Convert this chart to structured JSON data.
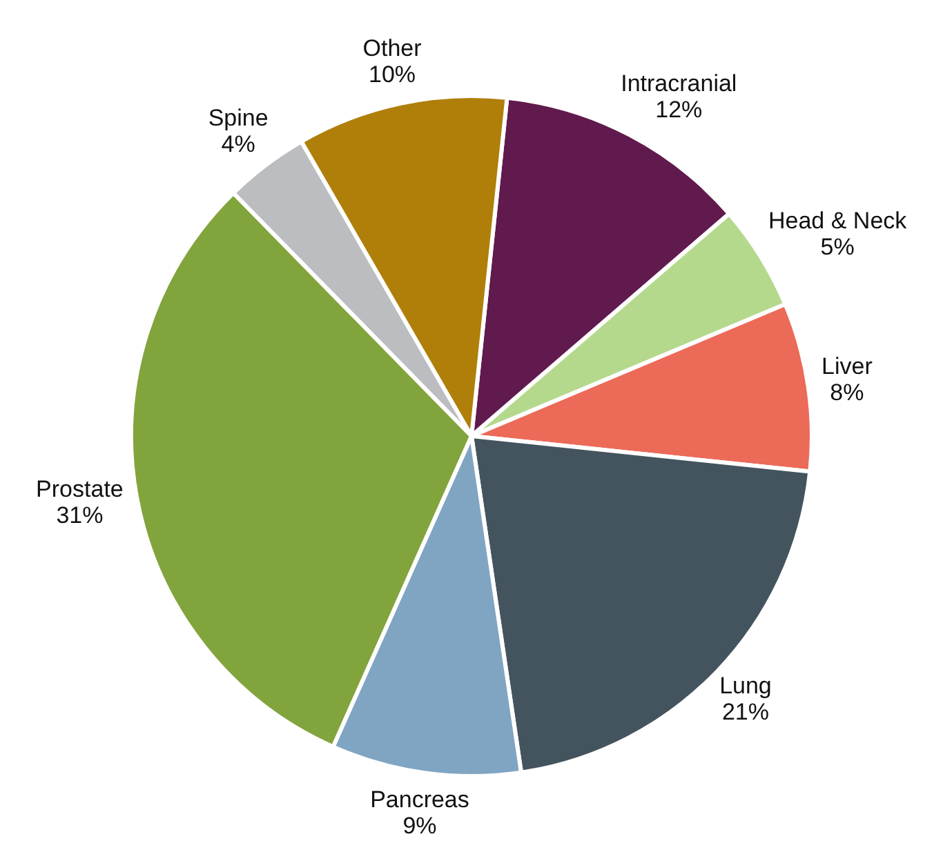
{
  "chart_data": {
    "type": "pie",
    "categories": [
      "Intracranial",
      "Head & Neck",
      "Liver",
      "Lung",
      "Pancreas",
      "Prostate",
      "Spine",
      "Other"
    ],
    "values": [
      12,
      5,
      8,
      21,
      9,
      31,
      4,
      10
    ],
    "value_labels": [
      "12%",
      "5%",
      "8%",
      "21%",
      "9%",
      "31%",
      "4%",
      "10%"
    ],
    "colors": [
      "#611a4d",
      "#b5d98c",
      "#ec6a58",
      "#44545f",
      "#80a5c2",
      "#82a43c",
      "#bcbdc0",
      "#b07f0a"
    ],
    "legend": false
  }
}
